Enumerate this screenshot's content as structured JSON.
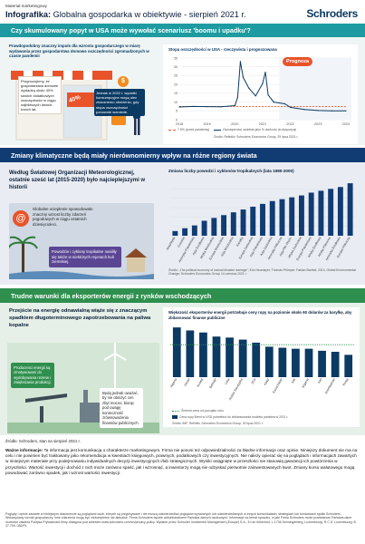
{
  "header": {
    "marker": "Materiał marketingowy",
    "title_bold": "Infografika:",
    "title_rest": " Globalna gospodarka w obiektywie - sierpień 2021 r.",
    "logo": "Schroders"
  },
  "s1": {
    "banner": "Czy skumulowany popyt w USA może wywołać scenariusz 'boomu i upadku'?",
    "intro": "Prawdopodobny znaczny impuls dla wzrostu gospodarczego w miarę wydawania przez gospodarstwa domowe oszczędności zgromadzonych w czasie pandemii",
    "box_a": "Prognozujemy, że gospodarstwa domowe wydadzą około 40% swoich dodatkowych oszczędności w ciągu najbliższych dwóch-trzech lat.",
    "badge": "40%",
    "box_b": "Jednak w 2022 r. wydatki konsumpcyjne mogą ulec znacznemu obniżeniu, gdy stopa oszczędności ponownie wzrośnie.",
    "chart_title": "Stopa oszczędności w USA - rzeczywista i prognozowana",
    "prognosis": "Prognoza",
    "legend_a": "7,5% (przed pandemią)",
    "legend_b": "Oszczędności osobiste jako % dochodu do dyspozycji",
    "source": "Źródło: Refinitiv, Schroders Economics Group, 29 lipca 2021 r."
  },
  "s2": {
    "banner": "Zmiany klimatyczne będą miały nierównomierny wpływ na różne regiony świata",
    "lead": "Według Światowej Organizacji Meteorologicznej, ostatnie sześć lat (2015-2020) było najcieplejszymi w historii",
    "warming": "Globalne ocieplenie spowodowało znaczny wzrost liczby zdarzeń pogodowych w ciągu ostatnich dziesięcioleci.",
    "floods": "Powodzie i cyklony tropikalne nasiliły się także w niektórych rejonach kuli ziemskiej.",
    "chart_title": "Zmiana liczby powodzi i cyklonów tropikalnych (lata 1980-2000)",
    "source": "Źródło: „The political economy of natural disaster damage\", Eric Neumayer, Thomas Plümper, Fabian Barthel, 2014, Global Environmental Change; Schroders Economics Group 14 czerwca 2021 r."
  },
  "s3": {
    "banner": "Trudne warunki dla eksporterów energii z rynków wschodzących",
    "lead": "Przejście na energię odnawialną wiąże się z znaczącym spadkiem długoterminowego zapotrzebowania na paliwa kopalne",
    "box_a": "Producenci energii są zmotywowani do wydobywania rezerw i zwiększania produkcji.",
    "box_b": "Będą jednak uważać, by nie obniżyć cen zbyt mocno, biorąc pod uwagę konieczność zrównoważenia finansów publicznych.",
    "chart_title": "Większość eksporterów energii potrzebuje ceny ropy na poziomie około 60 dolarów za baryłkę, aby zbilansować finanse publiczne",
    "legend_a": "Średnia cena od początku roku",
    "legend_b": "Cena ropy Brent w USD potrzebna do zbilansowania budżetu państwa w 2021 r.",
    "source": "Źródło: IMF, Refinitiv, Schroders Economics Group, 30 lipca 2021 r."
  },
  "footer": {
    "source": "Źródło: Schroders, stan na sierpień 2021 r.",
    "important_bold": "Ważne informacje:",
    "important": " Ta informacja jest komunikacją o charakterze marketingowym. Firma nie ponosi też odpowiedzialności za błędne informacje oraz opinie. Niniejszy dokument nie ma na celu i nie powinien być traktowany jako rekomendacja w kwestiach księgowych, prawnych, podatkowych czy inwestycyjnych. Nie należy opierać się na poglądach i informacjach zawartych w niniejszym materiale przy podejmowaniu indywidualnych decyzji inwestycyjnych i/lub strategicznych. Wyniki osiągnięte w przeszłości nie stanowią gwarancji ich powtórzenia w przyszłości. Wartość inwestycji i dochód z nich może zarówno spaść, jak i wzrosnąć, a inwestorzy mogą nie odzyskać pierwotnie zainwestowanych kwot. Zmiany kursu walutowego mogą powodować zarówno spadek, jak i wzrost wartości inwestycji.",
    "fine": "Poglądy i opinie zawarte w niniejszym dokumencie są poglądami osób, których są przypisywane i nie muszą odzwierciedlać poglądów wyrażanych lub odzwierciedlanych w innych komunikatach, strategiach lub funduszach spółki Schroders. Wskazywany wzrost gospodarczy: inne zdarzenia mogą być niekompletne lub aktualne. Firma Schroders będzie administratorem Państwa danych osobowych. Informacje na temat sposobu, w jaki Firma Schroders może przetwarzać Państwa dane osobowe zawiera Polityka Prywatności firmy dostępna pod adresem www.schroders.com/en/privacy-policy. Wydane przez Schroder Investment Management (Europe) S.A., 5 rue Höhenhof, L-1736 Senningerberg, Luxembourg. R.C.S. Luxembourg: B 37.799. 082/PL"
  },
  "chart_data": [
    {
      "type": "line",
      "title": "Stopa oszczędności w USA - rzeczywista i prognozowana",
      "x": [
        2018,
        2018.5,
        2019,
        2019.5,
        2020,
        2020.1,
        2020.2,
        2020.3,
        2020.5,
        2020.75,
        2021,
        2021.1,
        2021.2,
        2021.4,
        2021.6,
        2021.8,
        2022,
        2022.5,
        2023,
        2023.5,
        2024
      ],
      "series": [
        {
          "name": "Oszczędności osobiste jako % dochodu do dyspozycji",
          "values": [
            7.2,
            7.5,
            7.4,
            7.3,
            8.0,
            12.7,
            33.0,
            24.0,
            18.0,
            13.5,
            20.5,
            27.0,
            14.0,
            10.0,
            9.5,
            9.0,
            7.0,
            5.8,
            5.2,
            5.0,
            5.0
          ]
        },
        {
          "name": "7,5% (przed pandemią)",
          "values": [
            7.5,
            7.5,
            7.5,
            7.5,
            7.5,
            7.5,
            7.5,
            7.5,
            7.5,
            7.5,
            7.5,
            7.5,
            7.5,
            7.5,
            7.5,
            7.5,
            7.5,
            7.5,
            7.5,
            7.5,
            7.5
          ]
        }
      ],
      "forecast_from": 2021.6,
      "xticks": [
        2018,
        2019,
        2020,
        2021,
        2022,
        2023,
        2024
      ],
      "ylim": [
        0,
        35
      ],
      "yticks": [
        0,
        5,
        10,
        15,
        20,
        25,
        30,
        35
      ]
    },
    {
      "type": "bar",
      "title": "Zmiana liczby powodzi i cyklonów tropikalnych (lata 1980-2000)",
      "categories": [
        "Antarktyda",
        "Oceania",
        "Ameryka Południowa",
        "Azja Środkowa",
        "Afryka Wschodnia",
        "Europa Wschodnia",
        "Azja Wschodnia",
        "Karaiby",
        "Europa Zachodnia",
        "Azja Południowa",
        "Azja Zachodnia",
        "Ameryka Północna",
        "Azja Płd.-Wsch.",
        "Afryka Zachodnia",
        "Europa Południowa",
        "Afryka Środkowa",
        "Afryka Północna",
        "Ameryka Środkowa",
        "Europa Północna"
      ],
      "values": [
        0.5,
        0.8,
        1.1,
        1.6,
        1.9,
        2.2,
        2.5,
        2.8,
        3.1,
        3.4,
        3.7,
        3.9,
        4.1,
        4.3,
        4.6,
        4.8,
        5.0,
        5.2,
        5.6
      ],
      "ylim": [
        0,
        6
      ]
    },
    {
      "type": "bar",
      "title": "Większość eksporterów energii potrzebuje ceny ropy na poziomie około 60 dolarów za baryłkę, aby zbilansować finanse publiczne",
      "categories": [
        "Nigeria",
        "Oman",
        "Kuwejt",
        "Bahrajn",
        "Libia",
        "Arabia Saudyjska",
        "ZEA",
        "Katar",
        "Kazachstan",
        "Irak",
        "Algieria",
        "Iran",
        "Azerbejdżan",
        "Rosja"
      ],
      "series": [
        {
          "name": "Cena ropy Brent w USD potrzebna do zbilansowania budżetu państwa w 2021 r.",
          "values": [
            98,
            92,
            88,
            80,
            78,
            74,
            68,
            60,
            58,
            56,
            56,
            52,
            50,
            44
          ]
        },
        {
          "name": "Średnia cena od początku roku",
          "values": [
            64,
            64,
            64,
            64,
            64,
            64,
            64,
            64,
            64,
            64,
            64,
            64,
            64,
            64
          ]
        }
      ],
      "ylim": [
        0,
        100
      ]
    }
  ],
  "colors": {
    "navy": "#0b3a63",
    "teal": "#1d9ba0",
    "green": "#2f8f4e",
    "orange": "#f28c1e",
    "purple": "#5b4694",
    "darkblue": "#113b73"
  }
}
